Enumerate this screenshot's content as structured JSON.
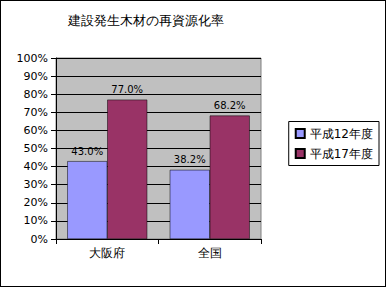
{
  "chart_data": {
    "type": "bar",
    "title": "建設発生木材の再資源化率",
    "categories": [
      "大阪府",
      "全国"
    ],
    "series": [
      {
        "name": "平成12年度",
        "color": "#9999ff",
        "values": [
          43.0,
          38.2
        ],
        "value_labels": [
          "43.0%",
          "38.2%"
        ]
      },
      {
        "name": "平成17年度",
        "color": "#993366",
        "values": [
          77.0,
          68.2
        ],
        "value_labels": [
          "77.0%",
          "68.2%"
        ]
      }
    ],
    "ylim": [
      0,
      100
    ],
    "yticks": [
      {
        "value": 0,
        "label": "0%"
      },
      {
        "value": 10,
        "label": "10%"
      },
      {
        "value": 20,
        "label": "20%"
      },
      {
        "value": 30,
        "label": "30%"
      },
      {
        "value": 40,
        "label": "40%"
      },
      {
        "value": 50,
        "label": "50%"
      },
      {
        "value": 60,
        "label": "60%"
      },
      {
        "value": 70,
        "label": "70%"
      },
      {
        "value": 80,
        "label": "80%"
      },
      {
        "value": 90,
        "label": "90%"
      },
      {
        "value": 100,
        "label": "100%"
      }
    ],
    "grid": true,
    "legend": "right",
    "data_labels": true
  }
}
